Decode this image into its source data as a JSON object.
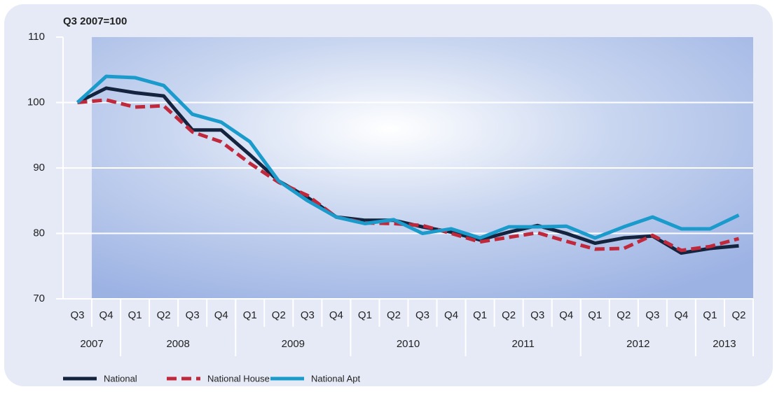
{
  "chart_data": {
    "type": "line",
    "subtitle": "Q3 2007=100",
    "categories": [
      "Q3",
      "Q4",
      "Q1",
      "Q2",
      "Q3",
      "Q4",
      "Q1",
      "Q2",
      "Q3",
      "Q4",
      "Q1",
      "Q2",
      "Q3",
      "Q4",
      "Q1",
      "Q2",
      "Q3",
      "Q4",
      "Q1",
      "Q2",
      "Q3",
      "Q4",
      "Q1",
      "Q2"
    ],
    "year_groups": [
      {
        "label": "2007",
        "quarters": 2
      },
      {
        "label": "2008",
        "quarters": 4
      },
      {
        "label": "2009",
        "quarters": 4
      },
      {
        "label": "2010",
        "quarters": 4
      },
      {
        "label": "2011",
        "quarters": 4
      },
      {
        "label": "2012",
        "quarters": 4
      },
      {
        "label": "2013",
        "quarters": 2
      }
    ],
    "series": [
      {
        "name": "National",
        "color": "#14243f",
        "dash": false,
        "values": [
          100,
          102.2,
          101.5,
          101,
          95.8,
          95.8,
          92,
          88,
          85.5,
          82.5,
          82,
          82,
          81,
          80.2,
          79,
          80.2,
          81.2,
          80,
          78.5,
          79.3,
          79.6,
          77,
          77.7,
          78.1
        ]
      },
      {
        "name": "National House",
        "color": "#c0283c",
        "dash": true,
        "values": [
          100,
          100.4,
          99.3,
          99.5,
          95.5,
          94,
          90.7,
          87.8,
          85.8,
          82.5,
          81.6,
          81.5,
          81.2,
          80,
          78.7,
          79.4,
          80.1,
          78.8,
          77.6,
          77.7,
          79.7,
          77.4,
          78,
          79.2
        ]
      },
      {
        "name": "National Apt",
        "color": "#1b9bcb",
        "dash": false,
        "values": [
          100,
          104,
          103.8,
          102.6,
          98.2,
          97,
          94,
          88,
          85,
          82.5,
          81.5,
          82.1,
          80,
          80.7,
          79.3,
          81,
          81,
          81.1,
          79.3,
          81,
          82.5,
          80.7,
          80.7,
          82.8
        ]
      }
    ],
    "ylim": [
      70,
      110
    ],
    "yticks": [
      70,
      80,
      90,
      100,
      110
    ],
    "grid": true
  }
}
